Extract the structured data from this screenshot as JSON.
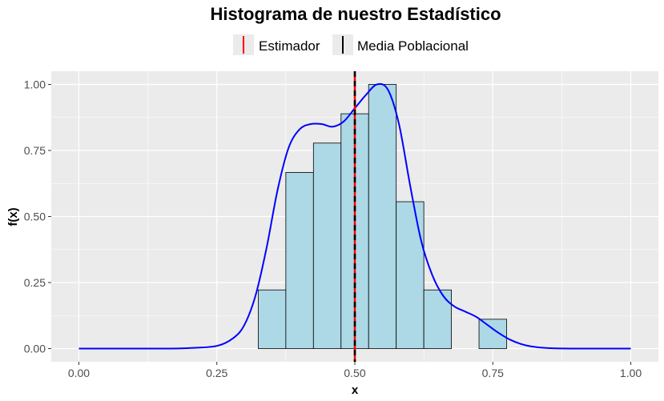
{
  "chart_data": {
    "type": "bar",
    "title": "Histograma de nuestro Estadístico",
    "xlabel": "x",
    "ylabel": "f(x)",
    "xlim": [
      -0.05,
      1.05
    ],
    "ylim": [
      -0.05,
      1.05
    ],
    "x_ticks": [
      0.0,
      0.25,
      0.5,
      0.75,
      1.0
    ],
    "x_tick_labels": [
      "0.00",
      "0.25",
      "0.50",
      "0.75",
      "1.00"
    ],
    "y_ticks": [
      0.0,
      0.25,
      0.5,
      0.75,
      1.0
    ],
    "y_tick_labels": [
      "0.00",
      "0.25",
      "0.50",
      "0.75",
      "1.00"
    ],
    "grid": true,
    "legend_position": "top",
    "bin_width": 0.05,
    "bins": [
      {
        "x0": 0.325,
        "x1": 0.375,
        "value": 0.222
      },
      {
        "x0": 0.375,
        "x1": 0.425,
        "value": 0.667
      },
      {
        "x0": 0.425,
        "x1": 0.475,
        "value": 0.778
      },
      {
        "x0": 0.475,
        "x1": 0.525,
        "value": 0.889
      },
      {
        "x0": 0.525,
        "x1": 0.575,
        "value": 1.0
      },
      {
        "x0": 0.575,
        "x1": 0.625,
        "value": 0.556
      },
      {
        "x0": 0.625,
        "x1": 0.675,
        "value": 0.222
      },
      {
        "x0": 0.725,
        "x1": 0.775,
        "value": 0.111
      }
    ],
    "bin_fill": "#add8e6",
    "bin_stroke": "#000000",
    "density_curve": {
      "color": "#0000ff",
      "x": [
        0.0,
        0.15,
        0.2,
        0.25,
        0.28,
        0.3,
        0.32,
        0.34,
        0.36,
        0.38,
        0.4,
        0.42,
        0.44,
        0.46,
        0.48,
        0.5,
        0.52,
        0.54,
        0.56,
        0.58,
        0.6,
        0.62,
        0.64,
        0.66,
        0.68,
        0.7,
        0.72,
        0.74,
        0.76,
        0.78,
        0.8,
        0.82,
        0.85,
        0.9,
        1.0
      ],
      "y": [
        0.0,
        0.0,
        0.002,
        0.01,
        0.04,
        0.09,
        0.2,
        0.38,
        0.6,
        0.76,
        0.83,
        0.85,
        0.85,
        0.84,
        0.86,
        0.91,
        0.96,
        1.0,
        0.98,
        0.85,
        0.62,
        0.41,
        0.28,
        0.2,
        0.16,
        0.14,
        0.12,
        0.09,
        0.06,
        0.035,
        0.018,
        0.008,
        0.002,
        0.0,
        0.0
      ]
    },
    "series": [
      {
        "name": "Estimador",
        "value": 0.5,
        "color": "#ff0000",
        "style": "solid"
      },
      {
        "name": "Media Poblacional",
        "value": 0.5,
        "color": "#000000",
        "style": "dashed"
      }
    ],
    "panel_background": "#ebebeb",
    "grid_color": "#ffffff"
  }
}
